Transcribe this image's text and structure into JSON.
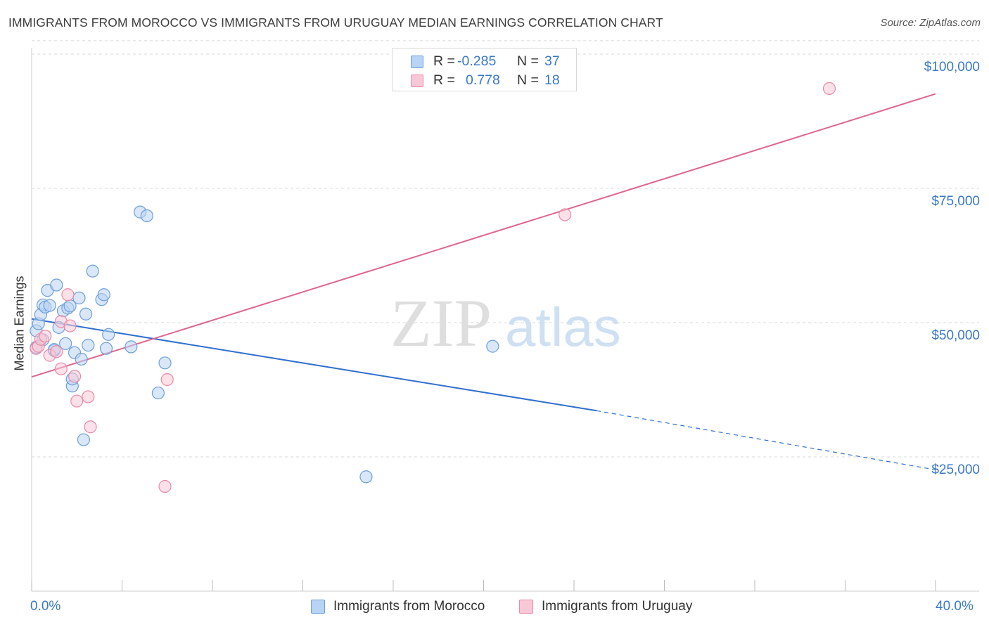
{
  "title": "IMMIGRANTS FROM MOROCCO VS IMMIGRANTS FROM URUGUAY MEDIAN EARNINGS CORRELATION CHART",
  "source": "Source: ZipAtlas.com",
  "watermark": {
    "zip": "ZIP",
    "atlas": "atlas"
  },
  "legend_top": [
    {
      "r_label": "R =",
      "r_value": "-0.285",
      "n_label": "N =",
      "n_value": "37"
    },
    {
      "r_label": "R =",
      "r_value": "0.778",
      "n_label": "N =",
      "n_value": "18"
    }
  ],
  "legend_bottom": [
    "Immigrants from Morocco",
    "Immigrants from Uruguay"
  ],
  "colors": {
    "morocco_fill": "#b9d3f4",
    "morocco_stroke": "#6e9fdb",
    "morocco_line": "#2f6fce",
    "uruguay_fill": "#f9c8d6",
    "uruguay_stroke": "#e88aa7",
    "uruguay_line": "#de6590",
    "grid": "#d9d9d9",
    "axis_text": "#3a78c9"
  },
  "chart_data": {
    "type": "scatter",
    "title": "IMMIGRANTS FROM MOROCCO VS IMMIGRANTS FROM URUGUAY MEDIAN EARNINGS CORRELATION CHART",
    "xlabel": "",
    "ylabel": "Median Earnings",
    "x_tick_labels": [
      "0.0%",
      "40.0%"
    ],
    "y_tick_labels": [
      "$25,000",
      "$50,000",
      "$75,000",
      "$100,000"
    ],
    "y_ticks": [
      25000,
      50000,
      75000,
      100000
    ],
    "xlim": [
      0,
      40
    ],
    "ylim": [
      0,
      102500
    ],
    "grid": true,
    "legend_placement": "bottom",
    "series": [
      {
        "name": "Immigrants from Morocco",
        "r": -0.285,
        "n": 37,
        "points": [
          [
            0.2,
            45.4
          ],
          [
            0.2,
            48.5
          ],
          [
            0.3,
            49.8
          ],
          [
            0.4,
            51.5
          ],
          [
            0.5,
            46.8
          ],
          [
            0.5,
            53.3
          ],
          [
            0.6,
            52.9
          ],
          [
            0.7,
            56.0
          ],
          [
            0.8,
            53.2
          ],
          [
            1.0,
            44.8
          ],
          [
            1.1,
            57.0
          ],
          [
            1.2,
            49.1
          ],
          [
            1.4,
            52.2
          ],
          [
            1.5,
            46.1
          ],
          [
            1.6,
            52.7
          ],
          [
            1.7,
            53.1
          ],
          [
            1.8,
            38.2
          ],
          [
            1.8,
            39.5
          ],
          [
            1.9,
            44.4
          ],
          [
            2.1,
            54.6
          ],
          [
            2.2,
            43.2
          ],
          [
            2.3,
            28.2
          ],
          [
            2.4,
            51.6
          ],
          [
            2.5,
            45.8
          ],
          [
            2.7,
            59.6
          ],
          [
            3.1,
            54.3
          ],
          [
            3.2,
            55.2
          ],
          [
            3.3,
            45.2
          ],
          [
            3.4,
            47.8
          ],
          [
            4.4,
            45.5
          ],
          [
            4.8,
            70.6
          ],
          [
            5.1,
            69.9
          ],
          [
            5.6,
            36.9
          ],
          [
            5.9,
            42.5
          ],
          [
            14.8,
            21.3
          ],
          [
            20.4,
            45.6
          ],
          [
            1.0,
            45.0
          ]
        ],
        "trend": {
          "x": [
            0,
            25
          ],
          "y": [
            50.7,
            33.6
          ],
          "dashed_to": [
            40,
            22.6
          ]
        }
      },
      {
        "name": "Immigrants from Uruguay",
        "r": 0.778,
        "n": 18,
        "points": [
          [
            0.2,
            45.2
          ],
          [
            0.3,
            45.6
          ],
          [
            0.4,
            46.9
          ],
          [
            0.6,
            47.5
          ],
          [
            0.8,
            43.9
          ],
          [
            1.1,
            44.6
          ],
          [
            1.3,
            50.2
          ],
          [
            1.3,
            41.4
          ],
          [
            1.6,
            55.2
          ],
          [
            1.7,
            49.4
          ],
          [
            1.9,
            40.0
          ],
          [
            2.0,
            35.4
          ],
          [
            2.5,
            36.2
          ],
          [
            2.6,
            30.6
          ],
          [
            5.9,
            19.5
          ],
          [
            6.0,
            39.4
          ],
          [
            23.6,
            70.1
          ],
          [
            35.3,
            93.6
          ]
        ],
        "trend": {
          "x": [
            0,
            40
          ],
          "y": [
            39.9,
            92.6
          ]
        }
      }
    ]
  }
}
